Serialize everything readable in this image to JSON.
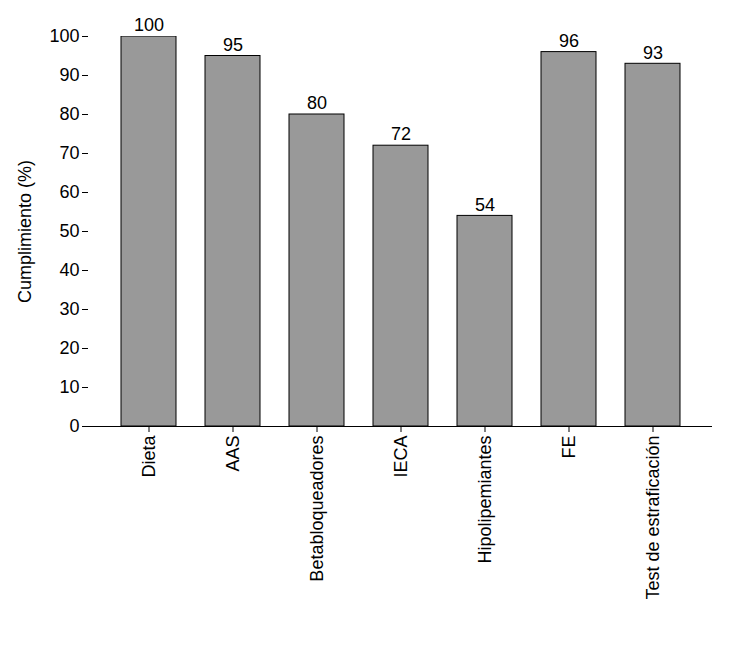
{
  "chart_data": {
    "type": "bar",
    "categories": [
      "Dieta",
      "AAS",
      "Betabloqueadores",
      "IECA",
      "Hipolipemiantes",
      "FE",
      "Test de estraficación"
    ],
    "values": [
      100,
      95,
      80,
      72,
      54,
      96,
      93
    ],
    "color": "#999999",
    "ylabel": "Cumplimiento (%)",
    "ylim": [
      0,
      100
    ],
    "yticks": [
      0,
      10,
      20,
      30,
      40,
      50,
      60,
      70,
      80,
      90,
      100
    ],
    "grid": false,
    "data_labels": true
  }
}
